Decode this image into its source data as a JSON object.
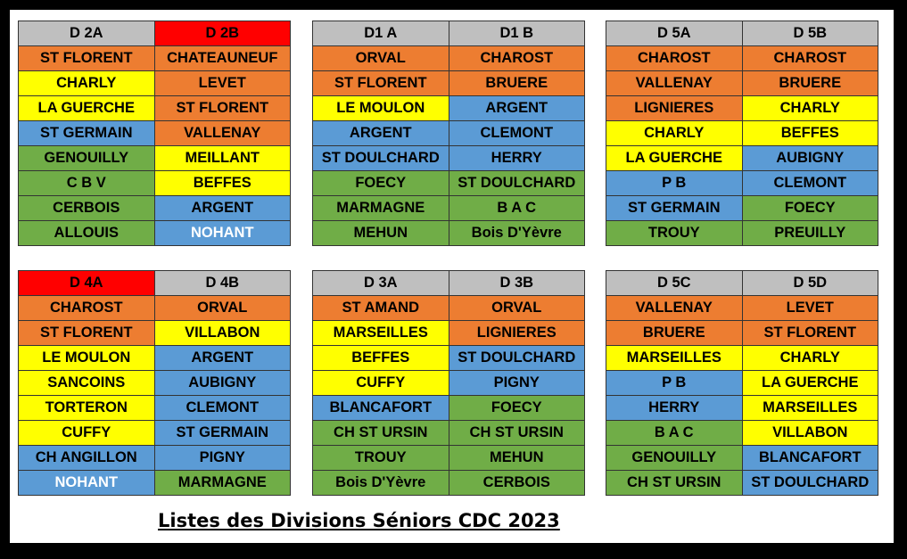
{
  "title": "Listes des Divisions Séniors CDC 2023",
  "tables": [
    {
      "columns": [
        {
          "header": "D 2A",
          "header_color": "gray",
          "cells": [
            {
              "text": "ST FLORENT",
              "color": "orange"
            },
            {
              "text": "CHARLY",
              "color": "yellow"
            },
            {
              "text": "LA GUERCHE",
              "color": "yellow"
            },
            {
              "text": "ST GERMAIN",
              "color": "blue"
            },
            {
              "text": "GENOUILLY",
              "color": "green"
            },
            {
              "text": "C B V",
              "color": "green"
            },
            {
              "text": "CERBOIS",
              "color": "green"
            },
            {
              "text": "ALLOUIS",
              "color": "green"
            }
          ]
        },
        {
          "header": "D 2B",
          "header_color": "red",
          "cells": [
            {
              "text": "CHATEAUNEUF",
              "color": "orange"
            },
            {
              "text": "LEVET",
              "color": "orange"
            },
            {
              "text": "ST FLORENT",
              "color": "orange"
            },
            {
              "text": "VALLENAY",
              "color": "orange"
            },
            {
              "text": "MEILLANT",
              "color": "yellow"
            },
            {
              "text": "BEFFES",
              "color": "yellow"
            },
            {
              "text": "ARGENT",
              "color": "blue"
            },
            {
              "text": "NOHANT",
              "color": "blue",
              "text_color": "white"
            }
          ]
        }
      ]
    },
    {
      "columns": [
        {
          "header": "D1 A",
          "header_color": "gray",
          "cells": [
            {
              "text": "ORVAL",
              "color": "orange"
            },
            {
              "text": "ST FLORENT",
              "color": "orange"
            },
            {
              "text": "LE MOULON",
              "color": "yellow"
            },
            {
              "text": "ARGENT",
              "color": "blue"
            },
            {
              "text": "ST DOULCHARD",
              "color": "blue"
            },
            {
              "text": "FOECY",
              "color": "green"
            },
            {
              "text": "MARMAGNE",
              "color": "green"
            },
            {
              "text": "MEHUN",
              "color": "green"
            }
          ]
        },
        {
          "header": "D1 B",
          "header_color": "gray",
          "cells": [
            {
              "text": "CHAROST",
              "color": "orange"
            },
            {
              "text": "BRUERE",
              "color": "orange"
            },
            {
              "text": "ARGENT",
              "color": "blue"
            },
            {
              "text": "CLEMONT",
              "color": "blue"
            },
            {
              "text": "HERRY",
              "color": "blue"
            },
            {
              "text": "ST DOULCHARD",
              "color": "green"
            },
            {
              "text": "B A C",
              "color": "green"
            },
            {
              "text": "Bois D'Yèvre",
              "color": "green"
            }
          ]
        }
      ]
    },
    {
      "columns": [
        {
          "header": "D 5A",
          "header_color": "gray",
          "cells": [
            {
              "text": "CHAROST",
              "color": "orange"
            },
            {
              "text": "VALLENAY",
              "color": "orange"
            },
            {
              "text": "LIGNIERES",
              "color": "orange"
            },
            {
              "text": "CHARLY",
              "color": "yellow"
            },
            {
              "text": "LA GUERCHE",
              "color": "yellow"
            },
            {
              "text": "P B",
              "color": "blue"
            },
            {
              "text": "ST GERMAIN",
              "color": "blue"
            },
            {
              "text": "TROUY",
              "color": "green"
            }
          ]
        },
        {
          "header": "D 5B",
          "header_color": "gray",
          "cells": [
            {
              "text": "CHAROST",
              "color": "orange"
            },
            {
              "text": "BRUERE",
              "color": "orange"
            },
            {
              "text": "CHARLY",
              "color": "yellow"
            },
            {
              "text": "BEFFES",
              "color": "yellow"
            },
            {
              "text": "AUBIGNY",
              "color": "blue"
            },
            {
              "text": "CLEMONT",
              "color": "blue"
            },
            {
              "text": "FOECY",
              "color": "green"
            },
            {
              "text": "PREUILLY",
              "color": "green"
            }
          ]
        }
      ]
    },
    {
      "columns": [
        {
          "header": "D 4A",
          "header_color": "red",
          "cells": [
            {
              "text": "CHAROST",
              "color": "orange"
            },
            {
              "text": "ST FLORENT",
              "color": "orange"
            },
            {
              "text": "LE MOULON",
              "color": "yellow"
            },
            {
              "text": "SANCOINS",
              "color": "yellow"
            },
            {
              "text": "TORTERON",
              "color": "yellow"
            },
            {
              "text": "CUFFY",
              "color": "yellow"
            },
            {
              "text": "CH ANGILLON",
              "color": "blue"
            },
            {
              "text": "NOHANT",
              "color": "blue",
              "text_color": "white"
            }
          ]
        },
        {
          "header": "D 4B",
          "header_color": "gray",
          "cells": [
            {
              "text": "ORVAL",
              "color": "orange"
            },
            {
              "text": "VILLABON",
              "color": "yellow"
            },
            {
              "text": "ARGENT",
              "color": "blue"
            },
            {
              "text": "AUBIGNY",
              "color": "blue"
            },
            {
              "text": "CLEMONT",
              "color": "blue"
            },
            {
              "text": "ST GERMAIN",
              "color": "blue"
            },
            {
              "text": "PIGNY",
              "color": "blue"
            },
            {
              "text": "MARMAGNE",
              "color": "green"
            }
          ]
        }
      ]
    },
    {
      "columns": [
        {
          "header": "D 3A",
          "header_color": "gray",
          "cells": [
            {
              "text": "ST AMAND",
              "color": "orange"
            },
            {
              "text": "MARSEILLES",
              "color": "yellow"
            },
            {
              "text": "BEFFES",
              "color": "yellow"
            },
            {
              "text": "CUFFY",
              "color": "yellow"
            },
            {
              "text": "BLANCAFORT",
              "color": "blue"
            },
            {
              "text": "CH ST URSIN",
              "color": "green"
            },
            {
              "text": "TROUY",
              "color": "green"
            },
            {
              "text": "Bois D'Yèvre",
              "color": "green"
            }
          ]
        },
        {
          "header": "D 3B",
          "header_color": "gray",
          "cells": [
            {
              "text": "ORVAL",
              "color": "orange"
            },
            {
              "text": "LIGNIERES",
              "color": "orange"
            },
            {
              "text": "ST DOULCHARD",
              "color": "blue"
            },
            {
              "text": "PIGNY",
              "color": "blue"
            },
            {
              "text": "FOECY",
              "color": "green"
            },
            {
              "text": "CH ST URSIN",
              "color": "green"
            },
            {
              "text": "MEHUN",
              "color": "green"
            },
            {
              "text": "CERBOIS",
              "color": "green"
            }
          ]
        }
      ]
    },
    {
      "columns": [
        {
          "header": "D 5C",
          "header_color": "gray",
          "cells": [
            {
              "text": "VALLENAY",
              "color": "orange"
            },
            {
              "text": "BRUERE",
              "color": "orange"
            },
            {
              "text": "MARSEILLES",
              "color": "yellow"
            },
            {
              "text": "P B",
              "color": "blue"
            },
            {
              "text": "HERRY",
              "color": "blue"
            },
            {
              "text": "B A C",
              "color": "green"
            },
            {
              "text": "GENOUILLY",
              "color": "green"
            },
            {
              "text": "CH ST URSIN",
              "color": "green"
            }
          ]
        },
        {
          "header": "D 5D",
          "header_color": "gray",
          "cells": [
            {
              "text": "LEVET",
              "color": "orange"
            },
            {
              "text": "ST FLORENT",
              "color": "orange"
            },
            {
              "text": "CHARLY",
              "color": "yellow"
            },
            {
              "text": "LA GUERCHE",
              "color": "yellow"
            },
            {
              "text": "MARSEILLES",
              "color": "yellow"
            },
            {
              "text": "VILLABON",
              "color": "yellow"
            },
            {
              "text": "BLANCAFORT",
              "color": "blue"
            },
            {
              "text": "ST DOULCHARD",
              "color": "blue"
            }
          ]
        }
      ]
    }
  ]
}
